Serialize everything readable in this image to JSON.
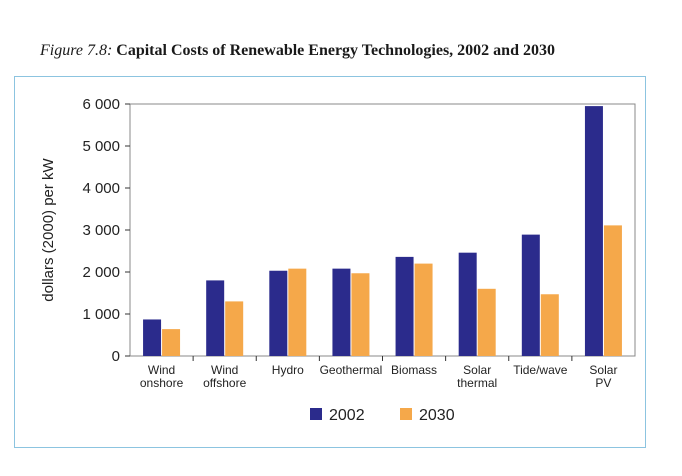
{
  "figure": {
    "label": "Figure 7.8:",
    "title": "Capital Costs of Renewable Energy Technologies, 2002 and 2030"
  },
  "chart_data": {
    "type": "bar",
    "ylabel": "dollars (2000) per kW",
    "xlabel": "",
    "ylim": [
      0,
      6000
    ],
    "yticks": [
      0,
      1000,
      2000,
      3000,
      4000,
      5000,
      6000
    ],
    "ytick_labels": [
      "0",
      "1 000",
      "2 000",
      "3 000",
      "4 000",
      "5 000",
      "6 000"
    ],
    "categories": [
      [
        "Wind",
        "onshore"
      ],
      [
        "Wind",
        "offshore"
      ],
      [
        "Hydro"
      ],
      [
        "Geothermal"
      ],
      [
        "Biomass"
      ],
      [
        "Solar",
        "thermal"
      ],
      [
        "Tide/wave"
      ],
      [
        "Solar",
        "PV"
      ]
    ],
    "series": [
      {
        "name": "2002",
        "color": "#2b2b8c",
        "values": [
          870,
          1800,
          2030,
          2080,
          2360,
          2460,
          2890,
          5950
        ]
      },
      {
        "name": "2030",
        "color": "#f5a84a",
        "values": [
          640,
          1300,
          2080,
          1970,
          2200,
          1600,
          1470,
          3110
        ]
      }
    ],
    "grid": false,
    "legend_position": "bottom"
  }
}
